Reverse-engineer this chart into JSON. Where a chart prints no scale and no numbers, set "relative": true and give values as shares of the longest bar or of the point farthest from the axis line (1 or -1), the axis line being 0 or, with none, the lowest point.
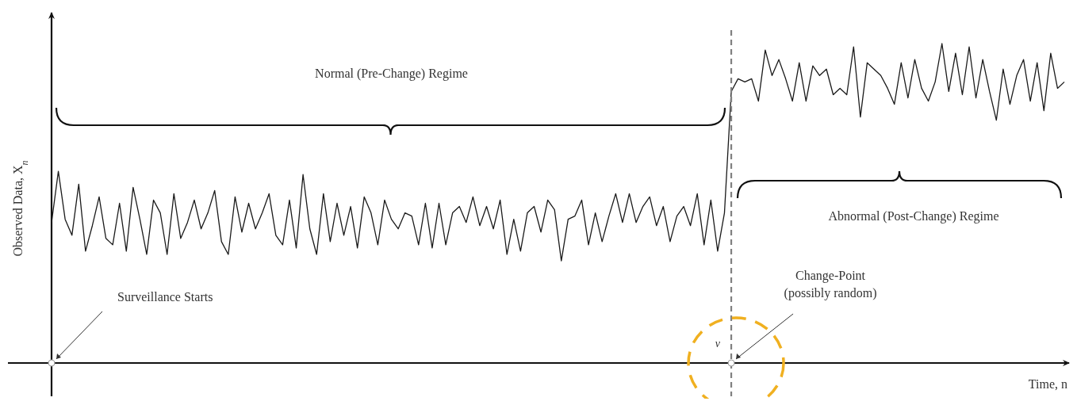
{
  "chart_data": {
    "type": "line",
    "relative": true,
    "xlabel": "Time, n",
    "ylabel": "Observed Data, X$_{n}$",
    "categories": [
      null,
      null,
      null,
      null,
      null,
      null,
      null,
      null,
      null,
      null,
      null,
      null,
      null,
      null,
      null,
      null,
      null,
      null,
      null,
      null,
      null,
      null,
      null,
      null,
      null,
      null,
      null,
      null,
      null,
      null,
      null,
      null,
      null,
      null,
      null,
      null,
      null,
      null,
      null,
      null,
      null,
      null,
      null,
      null,
      null,
      null,
      null,
      null,
      null,
      null,
      null,
      null,
      null,
      null,
      null,
      null,
      null,
      null,
      null,
      null,
      null,
      null,
      null,
      null,
      null,
      null,
      null,
      null,
      null,
      null,
      null,
      null,
      null,
      null,
      null,
      null,
      null,
      null,
      null,
      null,
      null,
      null,
      null,
      null,
      null,
      null,
      null,
      null,
      null,
      null,
      null,
      null,
      null,
      null,
      null,
      null,
      null,
      null,
      null,
      null,
      null,
      null,
      null,
      null,
      null,
      null,
      null,
      null,
      null,
      null,
      null,
      null,
      null,
      null,
      null,
      null,
      null,
      null,
      null,
      null,
      null,
      null,
      null,
      null,
      null,
      null,
      null,
      null,
      null,
      null,
      null,
      null,
      null,
      null,
      null,
      null,
      null,
      null,
      null,
      null,
      null,
      null,
      null,
      null,
      null,
      null,
      null,
      null,
      null,
      null
    ],
    "series": [
      {
        "color": "#1a1a1a",
        "values": [
          0.44,
          0.6,
          0.45,
          0.4,
          0.56,
          0.35,
          0.43,
          0.52,
          0.39,
          0.37,
          0.5,
          0.35,
          0.55,
          0.45,
          0.34,
          0.51,
          0.47,
          0.34,
          0.53,
          0.39,
          0.44,
          0.51,
          0.42,
          0.47,
          0.54,
          0.38,
          0.34,
          0.52,
          0.41,
          0.5,
          0.42,
          0.47,
          0.53,
          0.4,
          0.37,
          0.51,
          0.36,
          0.59,
          0.42,
          0.34,
          0.53,
          0.38,
          0.5,
          0.4,
          0.49,
          0.36,
          0.52,
          0.47,
          0.37,
          0.51,
          0.45,
          0.42,
          0.47,
          0.46,
          0.37,
          0.5,
          0.36,
          0.5,
          0.37,
          0.47,
          0.49,
          0.44,
          0.52,
          0.43,
          0.49,
          0.42,
          0.51,
          0.34,
          0.45,
          0.35,
          0.47,
          0.49,
          0.41,
          0.51,
          0.48,
          0.32,
          0.45,
          0.46,
          0.51,
          0.37,
          0.47,
          0.38,
          0.46,
          0.53,
          0.44,
          0.53,
          0.44,
          0.49,
          0.52,
          0.43,
          0.49,
          0.38,
          0.46,
          0.49,
          0.43,
          0.53,
          0.37,
          0.51,
          0.35,
          0.47,
          0.85,
          0.89,
          0.88,
          0.89,
          0.82,
          0.98,
          0.9,
          0.95,
          0.89,
          0.82,
          0.94,
          0.82,
          0.93,
          0.9,
          0.92,
          0.84,
          0.86,
          0.84,
          0.99,
          0.77,
          0.94,
          0.92,
          0.9,
          0.86,
          0.81,
          0.94,
          0.83,
          0.95,
          0.86,
          0.82,
          0.88,
          1.0,
          0.85,
          0.97,
          0.84,
          0.99,
          0.83,
          0.95,
          0.85,
          0.76,
          0.92,
          0.81,
          0.9,
          0.95,
          0.82,
          0.94,
          0.79,
          0.97,
          0.86,
          0.88
        ]
      }
    ],
    "annotations": [
      "Normal (Pre-Change) Regime",
      "Abnormal (Post-Change) Regime",
      "Surveillance Starts",
      "Change-Point (possibly random)",
      "ν"
    ]
  }
}
